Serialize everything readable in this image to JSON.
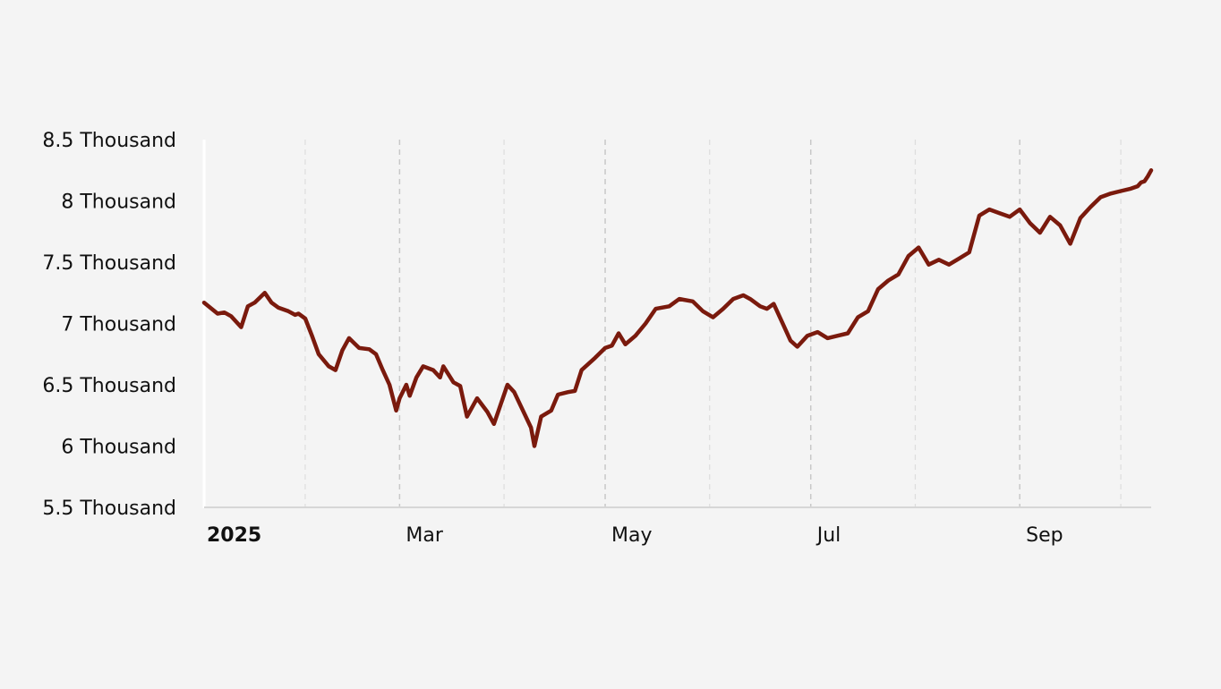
{
  "chart_data": {
    "type": "line",
    "title": "",
    "xlabel": "",
    "ylabel": "",
    "x_range": [
      "2025-01-02",
      "2025-10-10"
    ],
    "ylim": [
      5500,
      8500
    ],
    "y_ticks": [
      {
        "value": 5500,
        "label": "5.5 Thousand"
      },
      {
        "value": 6000,
        "label": "6 Thousand"
      },
      {
        "value": 6500,
        "label": "6.5 Thousand"
      },
      {
        "value": 7000,
        "label": "7 Thousand"
      },
      {
        "value": 7500,
        "label": "7.5 Thousand"
      },
      {
        "value": 8000,
        "label": "8 Thousand"
      },
      {
        "value": 8500,
        "label": "8.5 Thousand"
      }
    ],
    "x_ticks": [
      {
        "date": "2025-01-01",
        "label": "2025",
        "major": true
      },
      {
        "date": "2025-03-01",
        "label": "Mar",
        "major": false
      },
      {
        "date": "2025-05-01",
        "label": "May",
        "major": false
      },
      {
        "date": "2025-07-01",
        "label": "Jul",
        "major": false
      },
      {
        "date": "2025-09-01",
        "label": "Sep",
        "major": false
      }
    ],
    "minor_gridlines": [
      "2025-02-01",
      "2025-04-01",
      "2025-06-01",
      "2025-08-01",
      "2025-10-01"
    ],
    "grid": "vertical dashed",
    "legend": "none",
    "line_color": "#7a1a0d",
    "series": [
      {
        "x": [
          "2025-01-02",
          "2025-01-06",
          "2025-01-08",
          "2025-01-10",
          "2025-01-13",
          "2025-01-15",
          "2025-01-17",
          "2025-01-20",
          "2025-01-22",
          "2025-01-24",
          "2025-01-27",
          "2025-01-29",
          "2025-01-30",
          "2025-02-01",
          "2025-02-03",
          "2025-02-05",
          "2025-02-08",
          "2025-02-10",
          "2025-02-12",
          "2025-02-14",
          "2025-02-17",
          "2025-02-20",
          "2025-02-22",
          "2025-02-24",
          "2025-02-26",
          "2025-02-28",
          "2025-03-01",
          "2025-03-03",
          "2025-03-04",
          "2025-03-06",
          "2025-03-08",
          "2025-03-11",
          "2025-03-13",
          "2025-03-14",
          "2025-03-17",
          "2025-03-19",
          "2025-03-21",
          "2025-03-24",
          "2025-03-27",
          "2025-03-29",
          "2025-04-02",
          "2025-04-04",
          "2025-04-09",
          "2025-04-10",
          "2025-04-12",
          "2025-04-15",
          "2025-04-17",
          "2025-04-20",
          "2025-04-22",
          "2025-04-24",
          "2025-04-28",
          "2025-05-01",
          "2025-05-03",
          "2025-05-05",
          "2025-05-07",
          "2025-05-10",
          "2025-05-13",
          "2025-05-16",
          "2025-05-20",
          "2025-05-23",
          "2025-05-27",
          "2025-05-30",
          "2025-06-02",
          "2025-06-05",
          "2025-06-08",
          "2025-06-11",
          "2025-06-13",
          "2025-06-16",
          "2025-06-18",
          "2025-06-20",
          "2025-06-23",
          "2025-06-25",
          "2025-06-27",
          "2025-06-30",
          "2025-07-03",
          "2025-07-06",
          "2025-07-09",
          "2025-07-12",
          "2025-07-15",
          "2025-07-18",
          "2025-07-21",
          "2025-07-24",
          "2025-07-27",
          "2025-07-30",
          "2025-08-02",
          "2025-08-05",
          "2025-08-08",
          "2025-08-11",
          "2025-08-14",
          "2025-08-17",
          "2025-08-20",
          "2025-08-23",
          "2025-08-26",
          "2025-08-29",
          "2025-09-01",
          "2025-09-04",
          "2025-09-07",
          "2025-09-10",
          "2025-09-13",
          "2025-09-16",
          "2025-09-19",
          "2025-09-22",
          "2025-09-25",
          "2025-09-28",
          "2025-10-01",
          "2025-10-04",
          "2025-10-06",
          "2025-10-07",
          "2025-10-08",
          "2025-10-09",
          "2025-10-10"
        ],
        "values": [
          7170,
          7080,
          7090,
          7060,
          6970,
          7140,
          7170,
          7250,
          7170,
          7130,
          7100,
          7070,
          7080,
          7040,
          6900,
          6750,
          6650,
          6620,
          6780,
          6880,
          6800,
          6790,
          6750,
          6620,
          6500,
          6290,
          6390,
          6500,
          6410,
          6560,
          6650,
          6620,
          6560,
          6650,
          6520,
          6490,
          6240,
          6390,
          6280,
          6180,
          6500,
          6440,
          6150,
          6000,
          6240,
          6290,
          6420,
          6440,
          6450,
          6620,
          6720,
          6800,
          6820,
          6920,
          6830,
          6900,
          7000,
          7120,
          7140,
          7200,
          7180,
          7100,
          7050,
          7120,
          7200,
          7230,
          7200,
          7140,
          7120,
          7160,
          6980,
          6860,
          6810,
          6900,
          6930,
          6880,
          6900,
          6920,
          7050,
          7100,
          7280,
          7350,
          7400,
          7550,
          7620,
          7480,
          7520,
          7480,
          7530,
          7580,
          7880,
          7930,
          7900,
          7870,
          7930,
          7820,
          7740,
          7870,
          7800,
          7650,
          7860,
          7950,
          8030,
          8060,
          8080,
          8100,
          8120,
          8150,
          8160,
          8200,
          8250
        ]
      }
    ]
  }
}
